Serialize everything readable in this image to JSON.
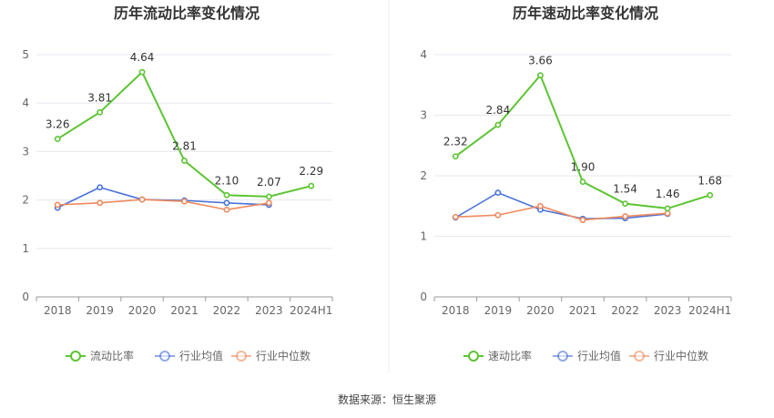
{
  "source": "数据来源：恒生聚源",
  "colors": {
    "main": "#5cc433",
    "avg": "#4a73d9",
    "median": "#f08a5d",
    "grid": "#e6e8f0",
    "axis": "#999999"
  },
  "chart_data": [
    {
      "type": "line",
      "title": "历年流动比率变化情况",
      "categories": [
        "2018",
        "2019",
        "2020",
        "2021",
        "2022",
        "2023",
        "2024H1"
      ],
      "ylim": [
        0,
        5
      ],
      "yticks": [
        0,
        1,
        2,
        3,
        4,
        5
      ],
      "grid": true,
      "legend_position": "bottom",
      "series": [
        {
          "name": "流动比率",
          "key": "main",
          "values": [
            3.26,
            3.81,
            4.64,
            2.81,
            2.1,
            2.07,
            2.29
          ],
          "labels": [
            "3.26",
            "3.81",
            "4.64",
            "2.81",
            "2.10",
            "2.07",
            "2.29"
          ]
        },
        {
          "name": "行业均值",
          "key": "avg",
          "values": [
            1.84,
            2.26,
            2.01,
            1.99,
            1.94,
            1.9,
            null
          ]
        },
        {
          "name": "行业中位数",
          "key": "median",
          "values": [
            1.9,
            1.94,
            2.01,
            1.97,
            1.8,
            1.94,
            null
          ]
        }
      ]
    },
    {
      "type": "line",
      "title": "历年速动比率变化情况",
      "categories": [
        "2018",
        "2019",
        "2020",
        "2021",
        "2022",
        "2023",
        "2024H1"
      ],
      "ylim": [
        0,
        4
      ],
      "yticks": [
        0,
        1,
        2,
        3,
        4
      ],
      "grid": true,
      "legend_position": "bottom",
      "series": [
        {
          "name": "速动比率",
          "key": "main",
          "values": [
            2.32,
            2.84,
            3.66,
            1.9,
            1.54,
            1.46,
            1.68
          ],
          "labels": [
            "2.32",
            "2.84",
            "3.66",
            "1.90",
            "1.54",
            "1.46",
            "1.68"
          ]
        },
        {
          "name": "行业均值",
          "key": "avg",
          "values": [
            1.31,
            1.72,
            1.44,
            1.29,
            1.3,
            1.37,
            null
          ]
        },
        {
          "name": "行业中位数",
          "key": "median",
          "values": [
            1.32,
            1.35,
            1.5,
            1.27,
            1.33,
            1.38,
            null
          ]
        }
      ]
    }
  ]
}
